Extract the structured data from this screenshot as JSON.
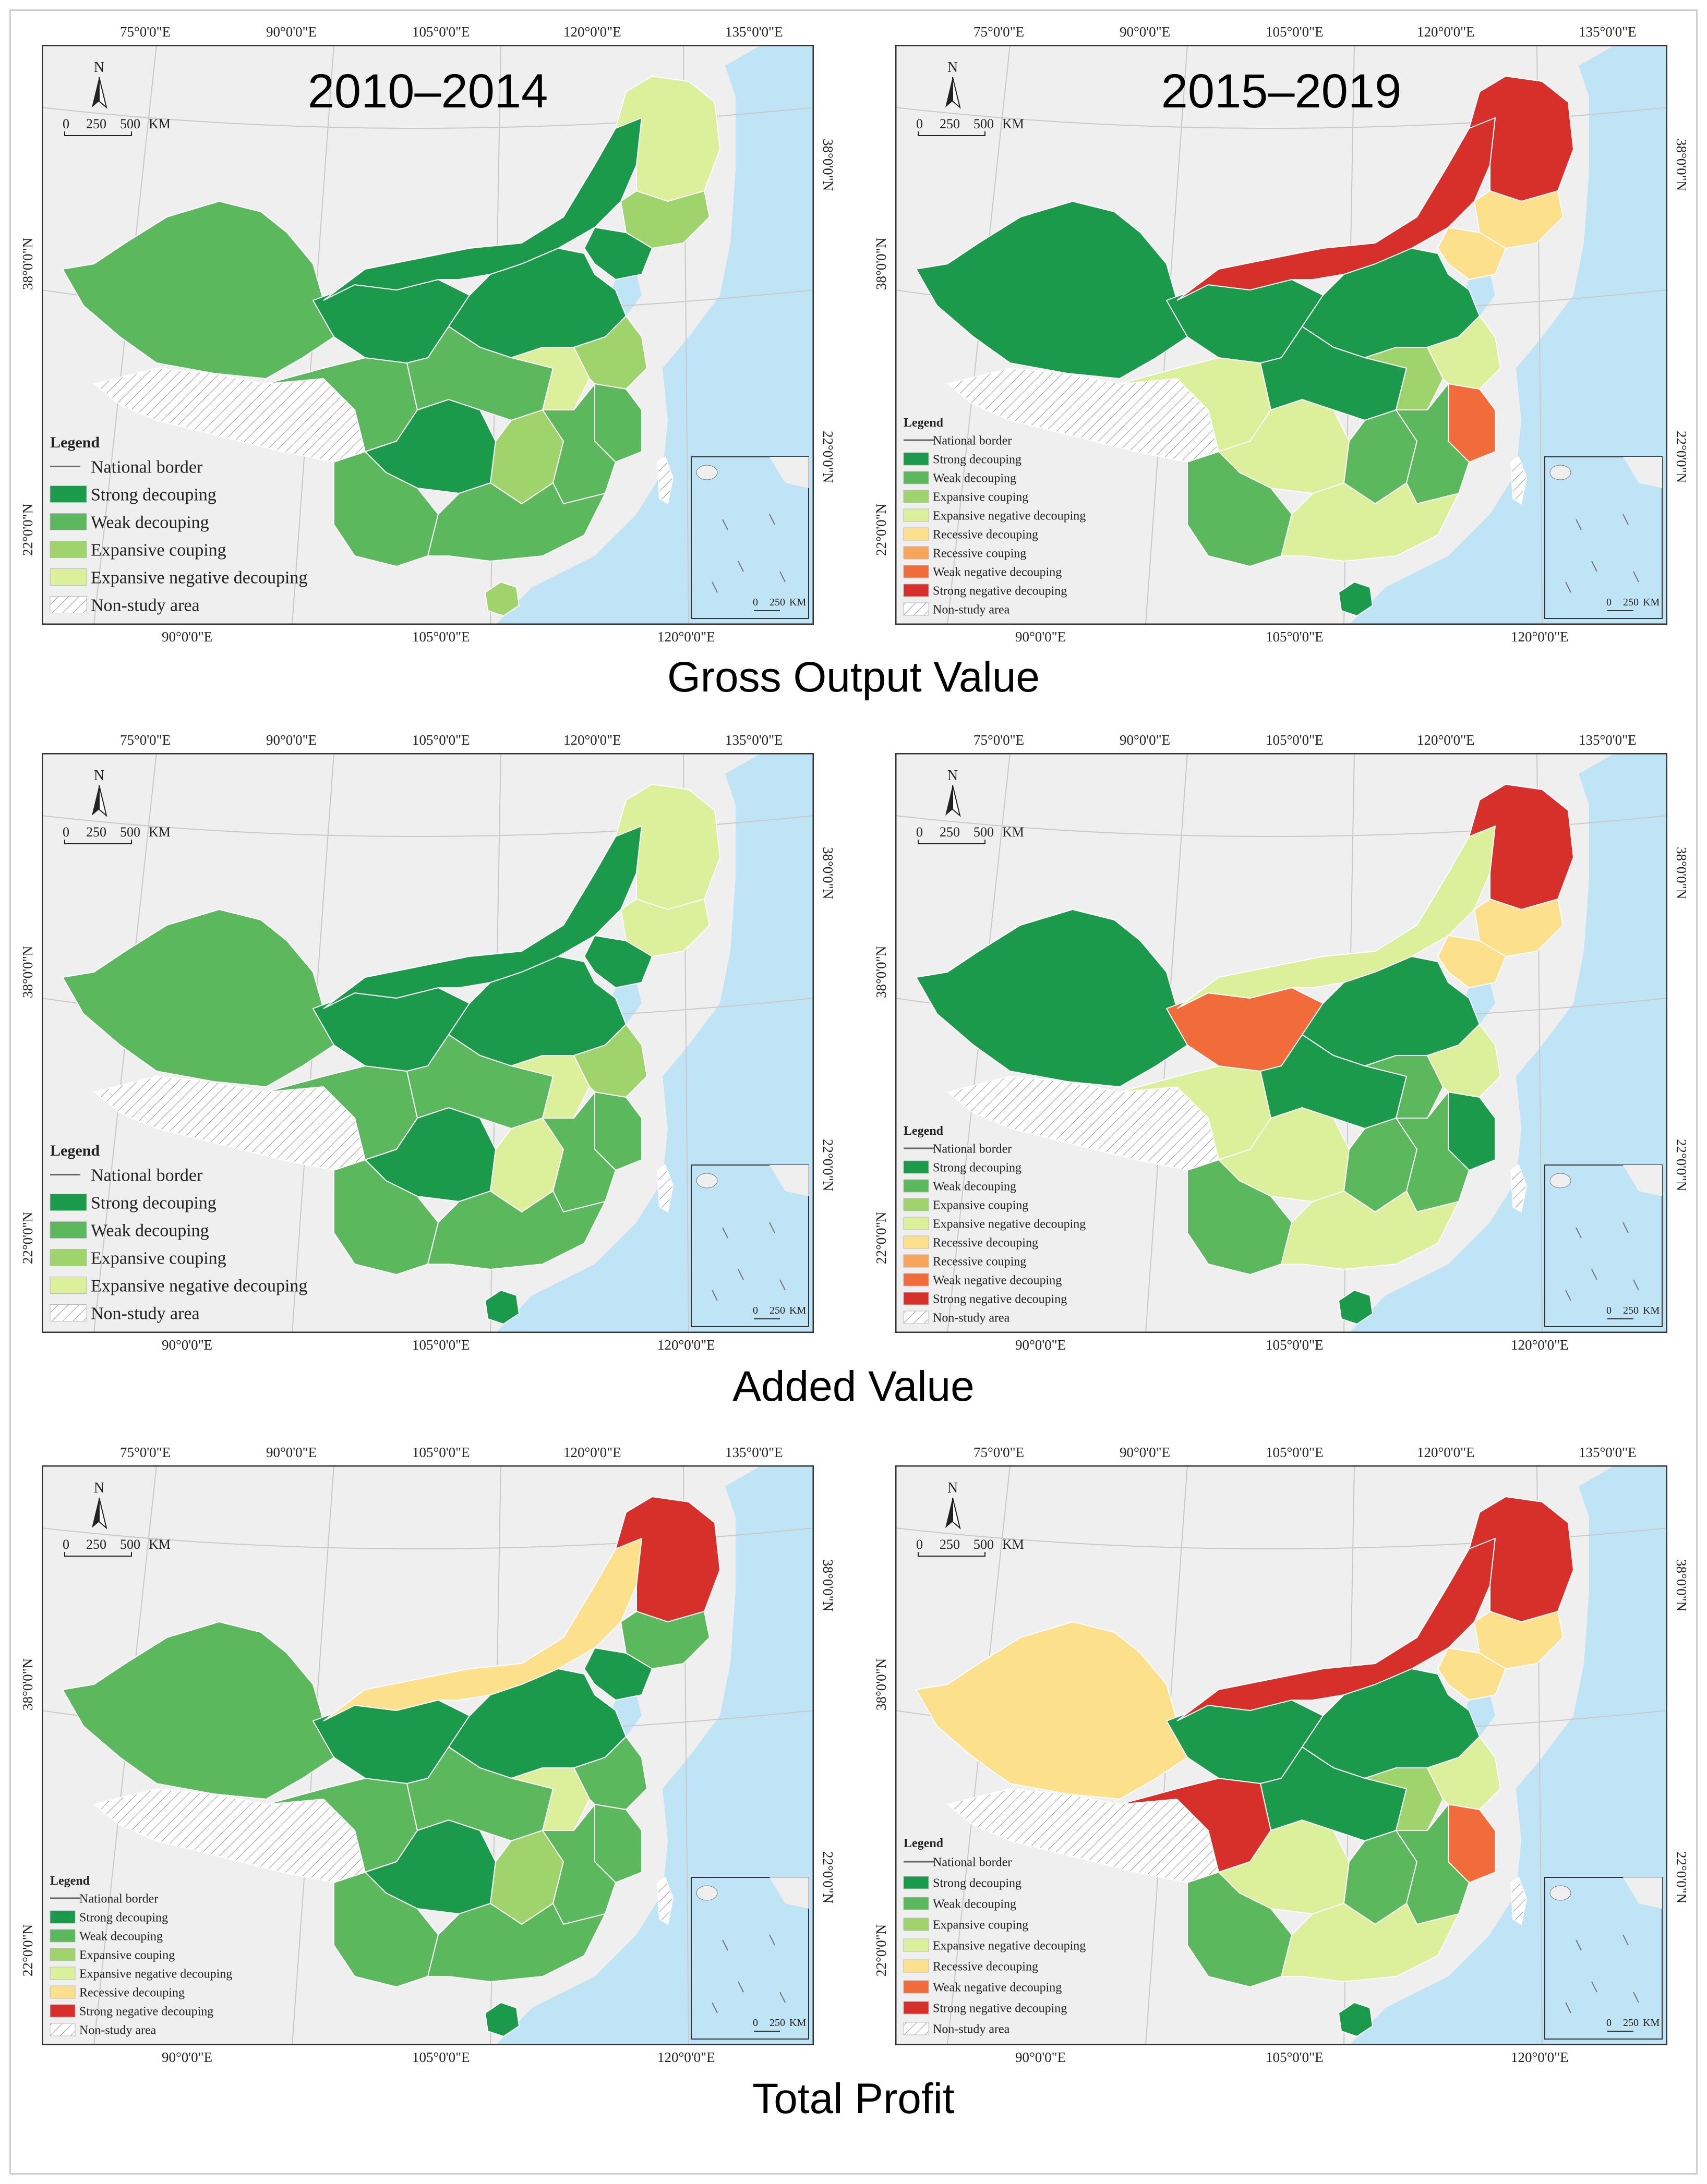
{
  "row_titles": [
    "Gross Output Value",
    "Added Value",
    "Total Profit"
  ],
  "period_labels": {
    "p2010": "2010–2014",
    "p2015": "2015–2019"
  },
  "axis_labels": {
    "top": [
      "75°0'0\"E",
      "90°0'0\"E",
      "105°0'0\"E",
      "120°0'0\"E",
      "135°0'0\"E"
    ],
    "bottom": [
      "90°0'0\"E",
      "105°0'0\"E",
      "120°0'0\"E"
    ],
    "left": [
      "38°0'0\"N",
      "22°0'0\"N"
    ],
    "right": [
      "38°0'0\"N",
      "22°0'0\"N"
    ]
  },
  "north": "N",
  "scale_main": {
    "t0": "0",
    "t1": "250",
    "t2": "500",
    "unit": "KM"
  },
  "scale_inset": {
    "t0": "0",
    "t1": "250",
    "unit": "KM"
  },
  "legend_title": "Legend",
  "legend_labels": {
    "border": "National border",
    "strong": "Strong decouping",
    "weak": "Weak decouping",
    "expansive": "Expansive couping",
    "expneg": "Expansive negative decouping",
    "recdec": "Recessive decouping",
    "reccoup": "Recessive couping",
    "weakneg": "Weak negative decouping",
    "strongneg": "Strong negative decouping",
    "nonstudy": "Non-study area"
  },
  "colors": {
    "strong": "#1b9a4b",
    "weak": "#5cb85c",
    "expansive": "#9fd36b",
    "expneg": "#dcef9a",
    "recdec": "#fde08c",
    "reccoup": "#f6a55a",
    "weakneg": "#f26b3a",
    "strongneg": "#d7302a",
    "sea": "#bfe4f6",
    "land": "#efefef",
    "border": "#7a7a7a",
    "nonstudy": "#ffffff"
  },
  "maps": [
    {
      "id": "gov-2010-2014",
      "row": "Gross Output Value",
      "period": "2010–2014",
      "legend": [
        "border",
        "strong",
        "weak",
        "expansive",
        "expneg",
        "nonstudy"
      ],
      "regions": {
        "xj": "weak",
        "tibet": "nonstudy",
        "qh": "weak",
        "gs": "strong",
        "nm": "strong",
        "hlj": "expneg",
        "jl": "expansive",
        "ln": "strong",
        "ne": "strong",
        "sc": "strong",
        "yn": "weak",
        "cn": "weak",
        "hb": "expneg",
        "hun": "expansive",
        "js": "expansive",
        "zj": "weak",
        "east": "weak",
        "south": "weak",
        "hainan": "expansive",
        "taiwan": "nonstudy"
      }
    },
    {
      "id": "gov-2015-2019",
      "row": "Gross Output Value",
      "period": "2015–2019",
      "legend": [
        "border",
        "strong",
        "weak",
        "expansive",
        "expneg",
        "recdec",
        "reccoup",
        "weakneg",
        "strongneg",
        "nonstudy"
      ],
      "regions": {
        "xj": "strong",
        "tibet": "nonstudy",
        "qh": "expneg",
        "gs": "strong",
        "nm": "strongneg",
        "hlj": "strongneg",
        "jl": "recdec",
        "ln": "recdec",
        "ne": "strong",
        "sc": "expneg",
        "yn": "weak",
        "cn": "strong",
        "hb": "expansive",
        "hun": "weak",
        "js": "expneg",
        "zj": "weakneg",
        "east": "weak",
        "south": "expneg",
        "hainan": "strong",
        "taiwan": "nonstudy"
      }
    },
    {
      "id": "av-2010-2014",
      "row": "Added Value",
      "period": "2010–2014",
      "legend": [
        "border",
        "strong",
        "weak",
        "expansive",
        "expneg",
        "nonstudy"
      ],
      "regions": {
        "xj": "weak",
        "tibet": "nonstudy",
        "qh": "weak",
        "gs": "strong",
        "nm": "strong",
        "hlj": "expneg",
        "jl": "expneg",
        "ln": "strong",
        "ne": "strong",
        "sc": "strong",
        "yn": "weak",
        "cn": "weak",
        "hb": "expneg",
        "hun": "expneg",
        "js": "expansive",
        "zj": "weak",
        "east": "weak",
        "south": "weak",
        "hainan": "strong",
        "taiwan": "nonstudy"
      }
    },
    {
      "id": "av-2015-2019",
      "row": "Added Value",
      "period": "2015–2019",
      "legend": [
        "border",
        "strong",
        "weak",
        "expansive",
        "expneg",
        "recdec",
        "reccoup",
        "weakneg",
        "strongneg",
        "nonstudy"
      ],
      "regions": {
        "xj": "strong",
        "tibet": "nonstudy",
        "qh": "expneg",
        "gs": "weakneg",
        "nm": "expneg",
        "hlj": "strongneg",
        "jl": "recdec",
        "ln": "recdec",
        "ne": "strong",
        "sc": "expneg",
        "yn": "weak",
        "cn": "strong",
        "hb": "weak",
        "hun": "weak",
        "js": "expneg",
        "zj": "strong",
        "east": "weak",
        "south": "expneg",
        "hainan": "strong",
        "taiwan": "nonstudy"
      }
    },
    {
      "id": "tp-2010-2014",
      "row": "Total Profit",
      "period": "2010–2014",
      "legend": [
        "border",
        "strong",
        "weak",
        "expansive",
        "expneg",
        "recdec",
        "strongneg",
        "nonstudy"
      ],
      "regions": {
        "xj": "weak",
        "tibet": "nonstudy",
        "qh": "weak",
        "gs": "strong",
        "nm": "recdec",
        "hlj": "strongneg",
        "jl": "weak",
        "ln": "strong",
        "ne": "strong",
        "sc": "strong",
        "yn": "weak",
        "cn": "weak",
        "hb": "expneg",
        "hun": "expansive",
        "js": "weak",
        "zj": "weak",
        "east": "weak",
        "south": "weak",
        "hainan": "strong",
        "taiwan": "nonstudy"
      }
    },
    {
      "id": "tp-2015-2019",
      "row": "Total Profit",
      "period": "2015–2019",
      "legend": [
        "border",
        "strong",
        "weak",
        "expansive",
        "expneg",
        "recdec",
        "weakneg",
        "strongneg",
        "nonstudy"
      ],
      "regions": {
        "xj": "recdec",
        "tibet": "nonstudy",
        "qh": "strongneg",
        "gs": "strong",
        "nm": "strongneg",
        "hlj": "strongneg",
        "jl": "recdec",
        "ln": "recdec",
        "ne": "strong",
        "sc": "expneg",
        "yn": "weak",
        "cn": "strong",
        "hb": "expansive",
        "hun": "weak",
        "js": "expneg",
        "zj": "weakneg",
        "east": "weak",
        "south": "expneg",
        "hainan": "strong",
        "taiwan": "nonstudy"
      }
    }
  ]
}
